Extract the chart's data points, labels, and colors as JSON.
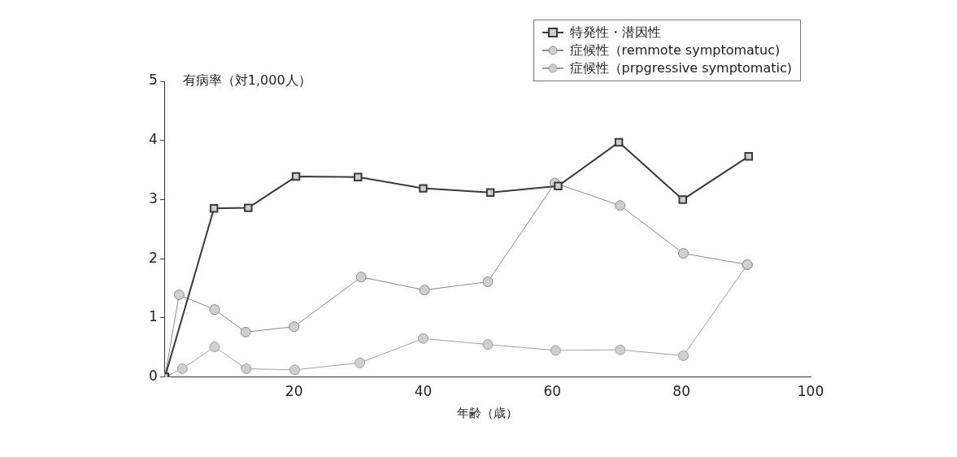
{
  "chart_data": {
    "type": "line",
    "xlabel": "年齢（歳）",
    "ylabel": "有病率（対1,000人）",
    "xlim": [
      0,
      100
    ],
    "xticks": [
      20,
      40,
      60,
      80,
      100
    ],
    "ylim": [
      0,
      5
    ],
    "yticks": [
      0,
      1,
      2,
      3,
      4,
      5
    ],
    "grid": false,
    "legend": "top right",
    "series": [
      {
        "name": "特発性・潜因性",
        "color": "#3a3a3a",
        "marker": "square",
        "x": [
          0,
          7.6,
          12.9,
          20.3,
          29.9,
          40,
          50.4,
          60.9,
          70.3,
          80.2,
          90.4
        ],
        "values": [
          0,
          2.85,
          2.86,
          3.39,
          3.38,
          3.19,
          3.12,
          3.23,
          3.97,
          3.0,
          3.73
        ]
      },
      {
        "name": "症候性（remmote symptomatuc)",
        "color": "#8a8a8a",
        "marker": "circle",
        "x": [
          0,
          2.2,
          7.7,
          12.5,
          20,
          30.4,
          40.2,
          50,
          60.4,
          70.5,
          80.3,
          90.2
        ],
        "values": [
          0,
          1.39,
          1.14,
          0.76,
          0.85,
          1.69,
          1.47,
          1.61,
          3.28,
          2.9,
          2.09,
          1.9
        ]
      },
      {
        "name": "症候性（prpgressive symptomatic)",
        "color": "#a0a0a0",
        "marker": "circle",
        "x": [
          0,
          2.7,
          7.7,
          12.6,
          20.1,
          30.2,
          40,
          50,
          60.5,
          70.5,
          80.3,
          90.2
        ],
        "values": [
          0,
          0.14,
          0.51,
          0.14,
          0.12,
          0.24,
          0.65,
          0.55,
          0.45,
          0.46,
          0.36,
          1.9
        ]
      }
    ]
  }
}
